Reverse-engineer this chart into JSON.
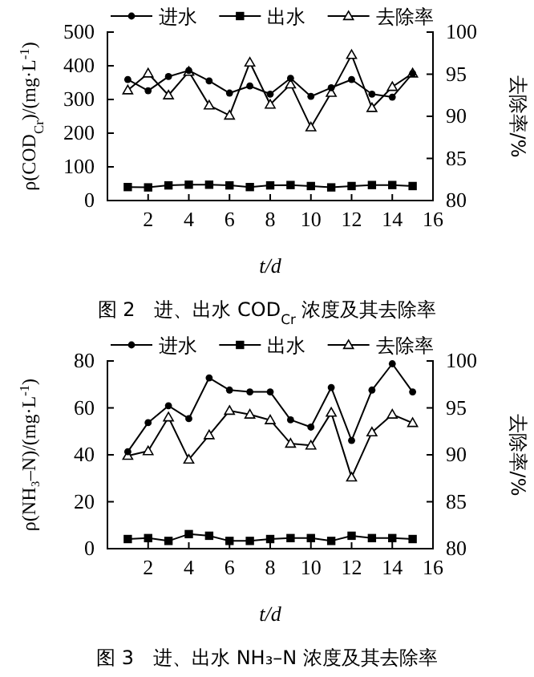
{
  "chart_data": [
    {
      "type": "line",
      "title": "图 2　进、出水 COD$_{Cr}$ 浓度及其去除率",
      "xlabel": "t/d",
      "ylabel": "ρ(COD$_{Cr}$)/(mg·L$^{-1}$)",
      "y2label": "去除率/%",
      "x": [
        1,
        2,
        3,
        4,
        5,
        6,
        7,
        8,
        9,
        10,
        11,
        12,
        13,
        14,
        15
      ],
      "xlim": [
        0,
        16
      ],
      "xticks": [
        2,
        4,
        6,
        8,
        10,
        12,
        14,
        16
      ],
      "ylim": [
        0,
        500
      ],
      "yticks": [
        0,
        100,
        200,
        300,
        400,
        500
      ],
      "y2lim": [
        80,
        100
      ],
      "y2ticks": [
        80,
        85,
        90,
        95,
        100
      ],
      "grid": false,
      "legend": "top",
      "series": [
        {
          "name": "进水",
          "color": "#000000",
          "marker": "circle",
          "values": [
            359,
            326,
            368,
            386,
            355,
            319,
            340,
            316,
            363,
            309,
            335,
            359,
            316,
            307,
            377
          ]
        },
        {
          "name": "出水",
          "color": "#000000",
          "marker": "square",
          "values": [
            40,
            39,
            45,
            47,
            47,
            45,
            40,
            45,
            46,
            43,
            39,
            43,
            46,
            46,
            43
          ]
        },
        {
          "name": "去除率",
          "color": "#000000",
          "marker": "triangle",
          "axis": "y2",
          "values": [
            93.1,
            95.1,
            92.5,
            95.3,
            91.3,
            90.1,
            96.4,
            91.4,
            93.8,
            88.7,
            92.8,
            97.3,
            91.0,
            93.5,
            95.1
          ]
        }
      ]
    },
    {
      "type": "line",
      "title": "图 3　进、出水 NH₃–N 浓度及其去除率",
      "xlabel": "t/d",
      "ylabel": "ρ(NH₃–N)/(mg·L$^{-1}$)",
      "y2label": "去除率/%",
      "x": [
        1,
        2,
        3,
        4,
        5,
        6,
        7,
        8,
        9,
        10,
        11,
        12,
        13,
        14,
        15
      ],
      "xlim": [
        0,
        16
      ],
      "xticks": [
        2,
        4,
        6,
        8,
        10,
        12,
        14,
        16
      ],
      "ylim": [
        0,
        80
      ],
      "yticks": [
        0,
        20,
        40,
        60,
        80
      ],
      "y2lim": [
        80,
        100
      ],
      "y2ticks": [
        80,
        85,
        90,
        95,
        100
      ],
      "grid": false,
      "legend": "top",
      "series": [
        {
          "name": "进水",
          "color": "#000000",
          "marker": "circle",
          "values": [
            41.3,
            53.7,
            60.9,
            55.4,
            72.8,
            67.6,
            66.8,
            66.8,
            54.9,
            51.8,
            68.7,
            46.1,
            67.6,
            78.8,
            66.8
          ]
        },
        {
          "name": "出水",
          "color": "#000000",
          "marker": "square",
          "values": [
            4.1,
            4.5,
            3.3,
            6.2,
            5.5,
            3.3,
            3.3,
            4.1,
            4.5,
            4.5,
            3.3,
            5.5,
            4.5,
            4.5,
            4.1
          ]
        },
        {
          "name": "去除率",
          "color": "#000000",
          "marker": "triangle",
          "axis": "y2",
          "values": [
            89.9,
            90.4,
            94.0,
            89.5,
            92.1,
            94.7,
            94.3,
            93.7,
            91.2,
            91.0,
            94.5,
            87.6,
            92.4,
            94.3,
            93.4
          ]
        }
      ]
    }
  ]
}
